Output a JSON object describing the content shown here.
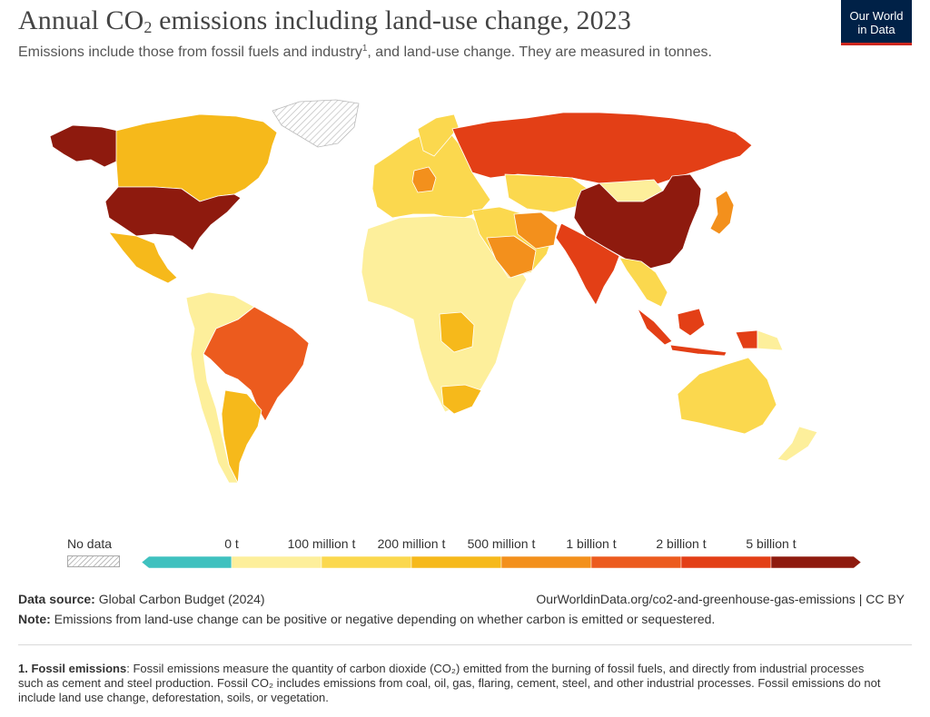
{
  "header": {
    "title_main": "Annual CO",
    "title_sub": "2",
    "title_rest": " emissions including land-use change, 2023",
    "subtitle_main": "Emissions include those from fossil fuels and industry",
    "subtitle_sup": "1",
    "subtitle_rest": ", and land-use change. They are measured in tonnes."
  },
  "logo": {
    "line1": "Our World",
    "line2": "in Data",
    "bg": "#002147",
    "accent": "#ce261e"
  },
  "legend": {
    "no_data_label": "No data",
    "tick_labels": [
      "0 t",
      "100 million t",
      "200 million t",
      "500 million t",
      "1 billion t",
      "2 billion t",
      "5 billion t"
    ],
    "colors": [
      "#3fc1bf",
      "#fdef9b",
      "#fbd84e",
      "#f6b91b",
      "#f3901c",
      "#ec5b1e",
      "#e33f16",
      "#8e1a0e"
    ]
  },
  "footer": {
    "source_label": "Data source:",
    "source_text": " Global Carbon Budget (2024)",
    "url": "OurWorldinData.org/co2-and-greenhouse-gas-emissions | CC BY",
    "note_label": "Note:",
    "note_text": " Emissions from land-use change can be positive or negative depending on whether carbon is emitted or sequestered.",
    "footnote_num": "1. ",
    "footnote_title": "Fossil emissions",
    "footnote_text": ": Fossil emissions measure the quantity of carbon dioxide (CO₂) emitted from the burning of fossil fuels, and directly from industrial processes such as cement and steel production. Fossil CO₂ includes emissions from coal, oil, gas, flaring, cement, steel, and other industrial processes. Fossil emissions do not include land use change, deforestation, soils, or vegetation."
  },
  "map_regions": {
    "china": "#8e1a0e",
    "usa": "#8e1a0e",
    "alaska": "#8e1a0e",
    "russia": "#e33f16",
    "india": "#e33f16",
    "brazil": "#ec5b1e",
    "indonesia": "#e33f16",
    "canada": "#f6b91b",
    "greenland": "no-data",
    "mexico": "#f6b91b",
    "europe": "#fbd84e",
    "germany": "#f3901c",
    "iran": "#f3901c",
    "saudi_arabia": "#f3901c",
    "kazakhstan": "#fbd84e",
    "japan": "#f3901c",
    "australia": "#fbd84e",
    "africa": "#fdef9b",
    "drc": "#f6b91b",
    "south_africa": "#f6b91b",
    "argentina": "#f6b91b",
    "south_america_other": "#fdef9b",
    "southeast_asia": "#fbd84e",
    "middle_east_other": "#fbd84e",
    "mongolia": "#fdef9b",
    "new_zealand": "#fdef9b",
    "papua_new_guinea": "#fdef9b"
  }
}
